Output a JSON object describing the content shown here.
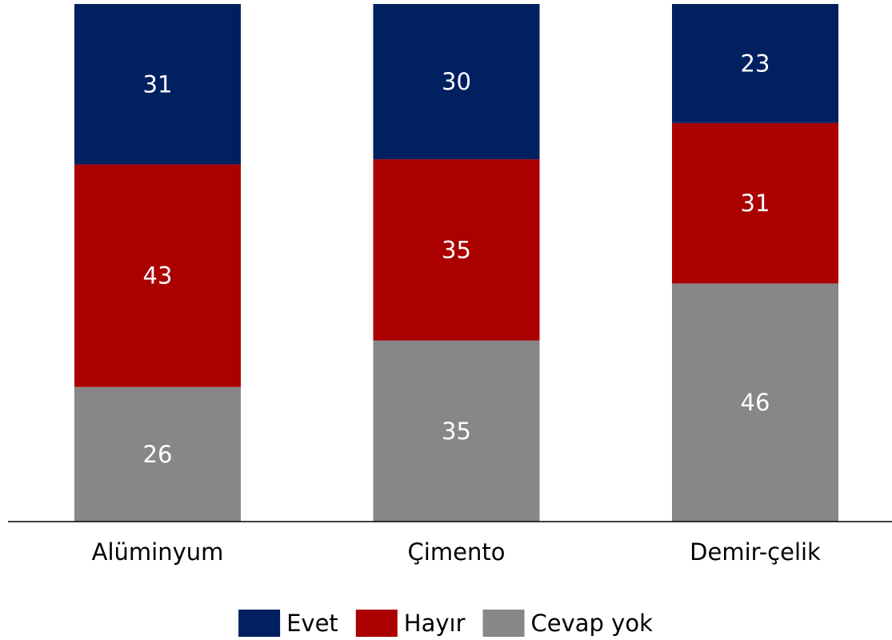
{
  "chart_data": {
    "type": "stacked-bar",
    "categories": [
      "Alüminyum",
      "Çimento",
      "Demir-çelik"
    ],
    "series": [
      {
        "name": "Evet",
        "color": "#002060",
        "values": [
          31,
          30,
          23
        ]
      },
      {
        "name": "Hayır",
        "color": "#aa0000",
        "values": [
          43,
          35,
          31
        ]
      },
      {
        "name": "Cevap yok",
        "color": "#878787",
        "values": [
          26,
          35,
          46
        ]
      }
    ]
  }
}
